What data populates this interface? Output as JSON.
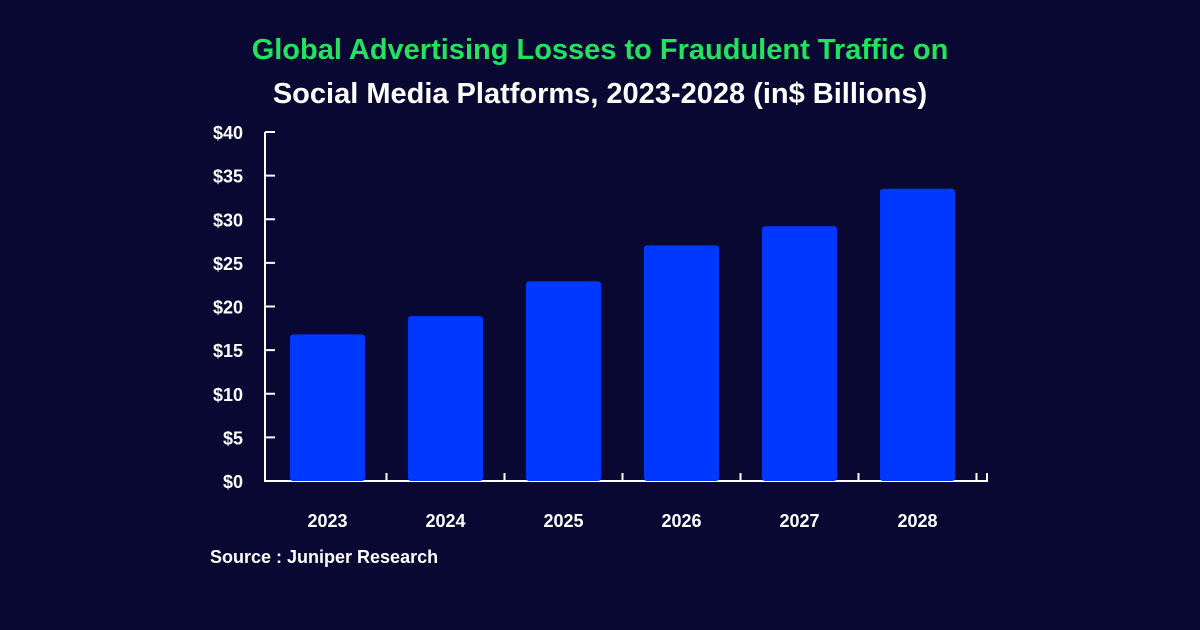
{
  "chart_data": {
    "type": "bar",
    "title_line1": "Global Advertising Losses to Fraudulent Traffic on",
    "title_line2": "Social Media Platforms, 2023-2028 (in$ Billions)",
    "categories": [
      "2023",
      "2024",
      "2025",
      "2026",
      "2027",
      "2028"
    ],
    "values": [
      16.8,
      18.9,
      22.9,
      27.0,
      29.2,
      33.5
    ],
    "yticks": [
      "$0",
      "$5",
      "$10",
      "$15",
      "$20",
      "$25",
      "$30",
      "$35",
      "$40"
    ],
    "ylim": [
      0,
      40
    ],
    "grid": false,
    "bar_color": "#0038ff",
    "title_color": "#22e25e",
    "background": "#090833",
    "source": "Source : Juniper Research"
  }
}
